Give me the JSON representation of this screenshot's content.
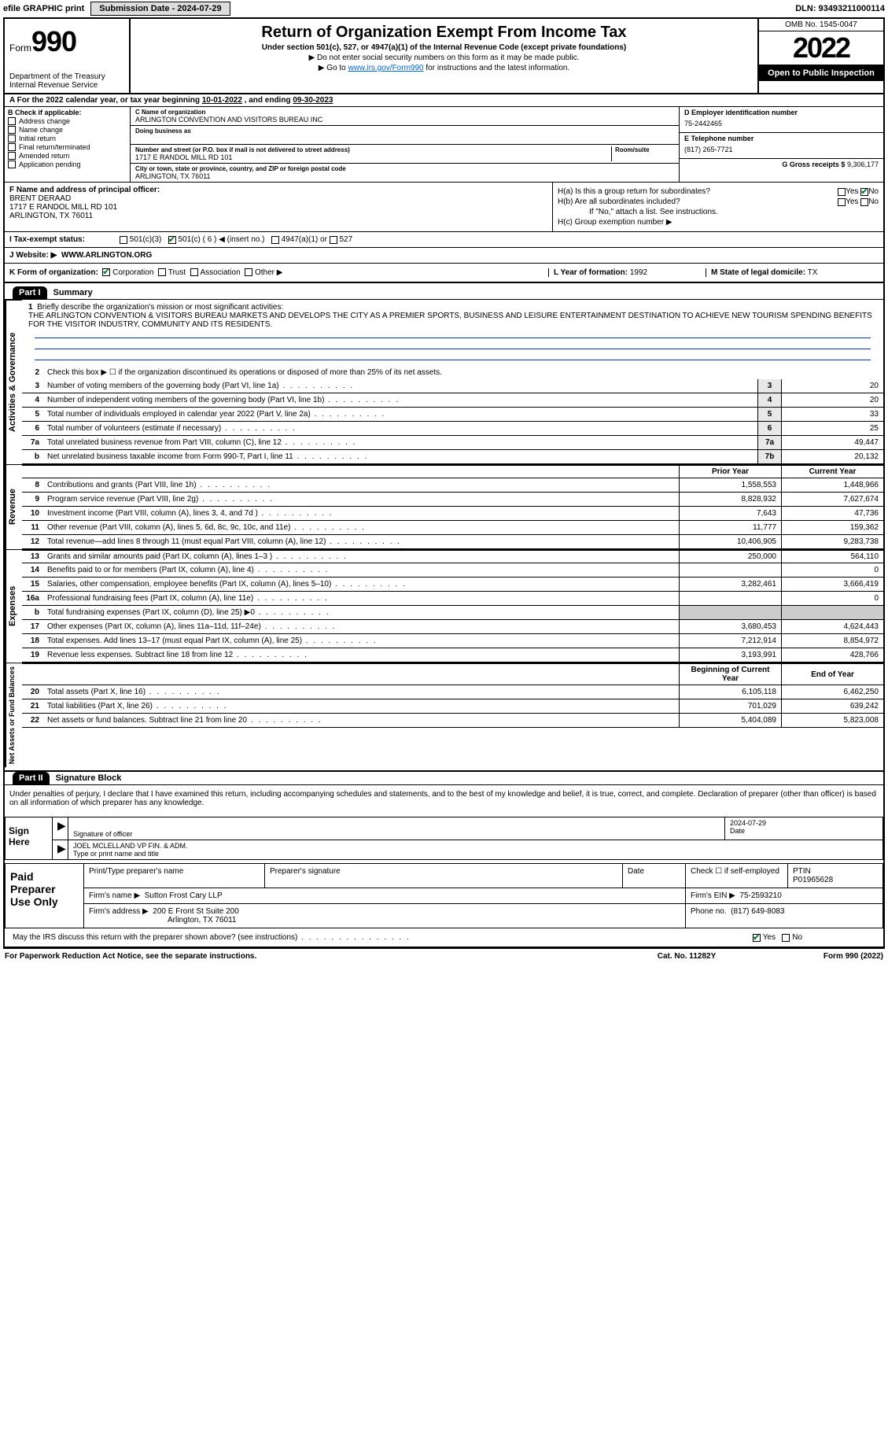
{
  "topbar": {
    "efile": "efile GRAPHIC print",
    "submission_label": "Submission Date - 2024-07-29",
    "dln": "DLN: 93493211000114"
  },
  "header": {
    "form_word": "Form",
    "form_num": "990",
    "dept": "Department of the Treasury",
    "irs": "Internal Revenue Service",
    "title": "Return of Organization Exempt From Income Tax",
    "subtitle": "Under section 501(c), 527, or 4947(a)(1) of the Internal Revenue Code (except private foundations)",
    "note1": "▶ Do not enter social security numbers on this form as it may be made public.",
    "note2_a": "▶ Go to ",
    "note2_link": "www.irs.gov/Form990",
    "note2_b": " for instructions and the latest information.",
    "omb": "OMB No. 1545-0047",
    "year": "2022",
    "open": "Open to Public Inspection"
  },
  "period": {
    "text_a": "A For the 2022 calendar year, or tax year beginning ",
    "begin": "10-01-2022",
    "text_b": " , and ending ",
    "end": "09-30-2023"
  },
  "boxB": {
    "label": "B Check if applicable:",
    "addr": "Address change",
    "name": "Name change",
    "initial": "Initial return",
    "final": "Final return/terminated",
    "amended": "Amended return",
    "app": "Application pending"
  },
  "boxC": {
    "name_label": "C Name of organization",
    "org_name": "ARLINGTON CONVENTION AND VISITORS BUREAU INC",
    "dba_label": "Doing business as",
    "addr_label": "Number and street (or P.O. box if mail is not delivered to street address)",
    "room_label": "Room/suite",
    "street": "1717 E RANDOL MILL RD 101",
    "city_label": "City or town, state or province, country, and ZIP or foreign postal code",
    "city": "ARLINGTON, TX  76011"
  },
  "boxD": {
    "label": "D Employer identification number",
    "ein": "75-2442465"
  },
  "boxE": {
    "label": "E Telephone number",
    "phone": "(817) 265-7721"
  },
  "boxG": {
    "label": "G Gross receipts $",
    "amount": "9,306,177"
  },
  "boxF": {
    "label": "F Name and address of principal officer:",
    "name": "BRENT DERAAD",
    "addr1": "1717 E RANDOL MILL RD 101",
    "addr2": "ARLINGTON, TX  76011"
  },
  "boxH": {
    "a_label": "H(a)  Is this a group return for subordinates?",
    "b_label": "H(b)  Are all subordinates included?",
    "b_note": "If \"No,\" attach a list. See instructions.",
    "c_label": "H(c)  Group exemption number ▶",
    "yes": "Yes",
    "no": "No"
  },
  "boxI": {
    "label": "I  Tax-exempt status:",
    "c3": "501(c)(3)",
    "c_paren": "501(c) ( 6 ) ◀ (insert no.)",
    "a1": "4947(a)(1) or",
    "s527": "527"
  },
  "boxJ": {
    "label": "J  Website: ▶",
    "site": "WWW.ARLINGTON.ORG"
  },
  "boxK": {
    "label": "K Form of organization:",
    "corp": "Corporation",
    "trust": "Trust",
    "assoc": "Association",
    "other": "Other ▶"
  },
  "boxL": {
    "label": "L Year of formation:",
    "val": "1992"
  },
  "boxM": {
    "label": "M State of legal domicile:",
    "val": "TX"
  },
  "part1": {
    "hdr": "Part I",
    "title": "Summary"
  },
  "mission": {
    "num": "1",
    "label": "Briefly describe the organization's mission or most significant activities:",
    "text": "THE ARLINGTON CONVENTION & VISITORS BUREAU MARKETS AND DEVELOPS THE CITY AS A PREMIER SPORTS, BUSINESS AND LEISURE ENTERTAINMENT DESTINATION TO ACHIEVE NEW TOURISM SPENDING BENEFITS FOR THE VISITOR INDUSTRY, COMMUNITY AND ITS RESIDENTS."
  },
  "line2": {
    "num": "2",
    "text": "Check this box ▶ ☐ if the organization discontinued its operations or disposed of more than 25% of its net assets."
  },
  "lines_ag": [
    {
      "num": "3",
      "text": "Number of voting members of the governing body (Part VI, line 1a)",
      "box": "3",
      "val": "20"
    },
    {
      "num": "4",
      "text": "Number of independent voting members of the governing body (Part VI, line 1b)",
      "box": "4",
      "val": "20"
    },
    {
      "num": "5",
      "text": "Total number of individuals employed in calendar year 2022 (Part V, line 2a)",
      "box": "5",
      "val": "33"
    },
    {
      "num": "6",
      "text": "Total number of volunteers (estimate if necessary)",
      "box": "6",
      "val": "25"
    },
    {
      "num": "7a",
      "text": "Total unrelated business revenue from Part VIII, column (C), line 12",
      "box": "7a",
      "val": "49,447"
    },
    {
      "num": "b",
      "text": "Net unrelated business taxable income from Form 990-T, Part I, line 11",
      "box": "7b",
      "val": "20,132"
    }
  ],
  "col_hdrs": {
    "prior": "Prior Year",
    "current": "Current Year",
    "begin": "Beginning of Current Year",
    "end": "End of Year"
  },
  "revenue": [
    {
      "num": "8",
      "text": "Contributions and grants (Part VIII, line 1h)",
      "prior": "1,558,553",
      "curr": "1,448,966"
    },
    {
      "num": "9",
      "text": "Program service revenue (Part VIII, line 2g)",
      "prior": "8,828,932",
      "curr": "7,627,674"
    },
    {
      "num": "10",
      "text": "Investment income (Part VIII, column (A), lines 3, 4, and 7d )",
      "prior": "7,643",
      "curr": "47,736"
    },
    {
      "num": "11",
      "text": "Other revenue (Part VIII, column (A), lines 5, 6d, 8c, 9c, 10c, and 11e)",
      "prior": "11,777",
      "curr": "159,362"
    },
    {
      "num": "12",
      "text": "Total revenue—add lines 8 through 11 (must equal Part VIII, column (A), line 12)",
      "prior": "10,406,905",
      "curr": "9,283,738"
    }
  ],
  "expenses": [
    {
      "num": "13",
      "text": "Grants and similar amounts paid (Part IX, column (A), lines 1–3 )",
      "prior": "250,000",
      "curr": "564,110"
    },
    {
      "num": "14",
      "text": "Benefits paid to or for members (Part IX, column (A), line 4)",
      "prior": "",
      "curr": "0"
    },
    {
      "num": "15",
      "text": "Salaries, other compensation, employee benefits (Part IX, column (A), lines 5–10)",
      "prior": "3,282,461",
      "curr": "3,666,419"
    },
    {
      "num": "16a",
      "text": "Professional fundraising fees (Part IX, column (A), line 11e)",
      "prior": "",
      "curr": "0"
    },
    {
      "num": "b",
      "text": "Total fundraising expenses (Part IX, column (D), line 25) ▶0",
      "prior": "__shade__",
      "curr": "__shade__"
    },
    {
      "num": "17",
      "text": "Other expenses (Part IX, column (A), lines 11a–11d, 11f–24e)",
      "prior": "3,680,453",
      "curr": "4,624,443"
    },
    {
      "num": "18",
      "text": "Total expenses. Add lines 13–17 (must equal Part IX, column (A), line 25)",
      "prior": "7,212,914",
      "curr": "8,854,972"
    },
    {
      "num": "19",
      "text": "Revenue less expenses. Subtract line 18 from line 12",
      "prior": "3,193,991",
      "curr": "428,766"
    }
  ],
  "netassets": [
    {
      "num": "20",
      "text": "Total assets (Part X, line 16)",
      "prior": "6,105,118",
      "curr": "6,462,250"
    },
    {
      "num": "21",
      "text": "Total liabilities (Part X, line 26)",
      "prior": "701,029",
      "curr": "639,242"
    },
    {
      "num": "22",
      "text": "Net assets or fund balances. Subtract line 21 from line 20",
      "prior": "5,404,089",
      "curr": "5,823,008"
    }
  ],
  "vtabs": {
    "ag": "Activities & Governance",
    "rev": "Revenue",
    "exp": "Expenses",
    "net": "Net Assets or Fund Balances"
  },
  "part2": {
    "hdr": "Part II",
    "title": "Signature Block"
  },
  "penalties": "Under penalties of perjury, I declare that I have examined this return, including accompanying schedules and statements, and to the best of my knowledge and belief, it is true, correct, and complete. Declaration of preparer (other than officer) is based on all information of which preparer has any knowledge.",
  "sign": {
    "here": "Sign Here",
    "sig_label": "Signature of officer",
    "date_label": "Date",
    "date": "2024-07-29",
    "name": "JOEL MCLELLAND VP FIN. & ADM.",
    "name_label": "Type or print name and title"
  },
  "paid": {
    "title": "Paid Preparer Use Only",
    "prep_name_label": "Print/Type preparer's name",
    "prep_sig_label": "Preparer's signature",
    "date_label": "Date",
    "self_label": "Check ☐ if self-employed",
    "ptin_label": "PTIN",
    "ptin": "P01965628",
    "firm_name_label": "Firm's name    ▶",
    "firm_name": "Sutton Frost Cary LLP",
    "firm_ein_label": "Firm's EIN ▶",
    "firm_ein": "75-2593210",
    "firm_addr_label": "Firm's address ▶",
    "firm_addr1": "200 E Front St Suite 200",
    "firm_addr2": "Arlington, TX  76011",
    "phone_label": "Phone no.",
    "phone": "(817) 649-8083"
  },
  "discuss": {
    "text": "May the IRS discuss this return with the preparer shown above? (see instructions)",
    "yes": "Yes",
    "no": "No"
  },
  "footer": {
    "pra": "For Paperwork Reduction Act Notice, see the separate instructions.",
    "cat": "Cat. No. 11282Y",
    "form": "Form 990 (2022)"
  }
}
